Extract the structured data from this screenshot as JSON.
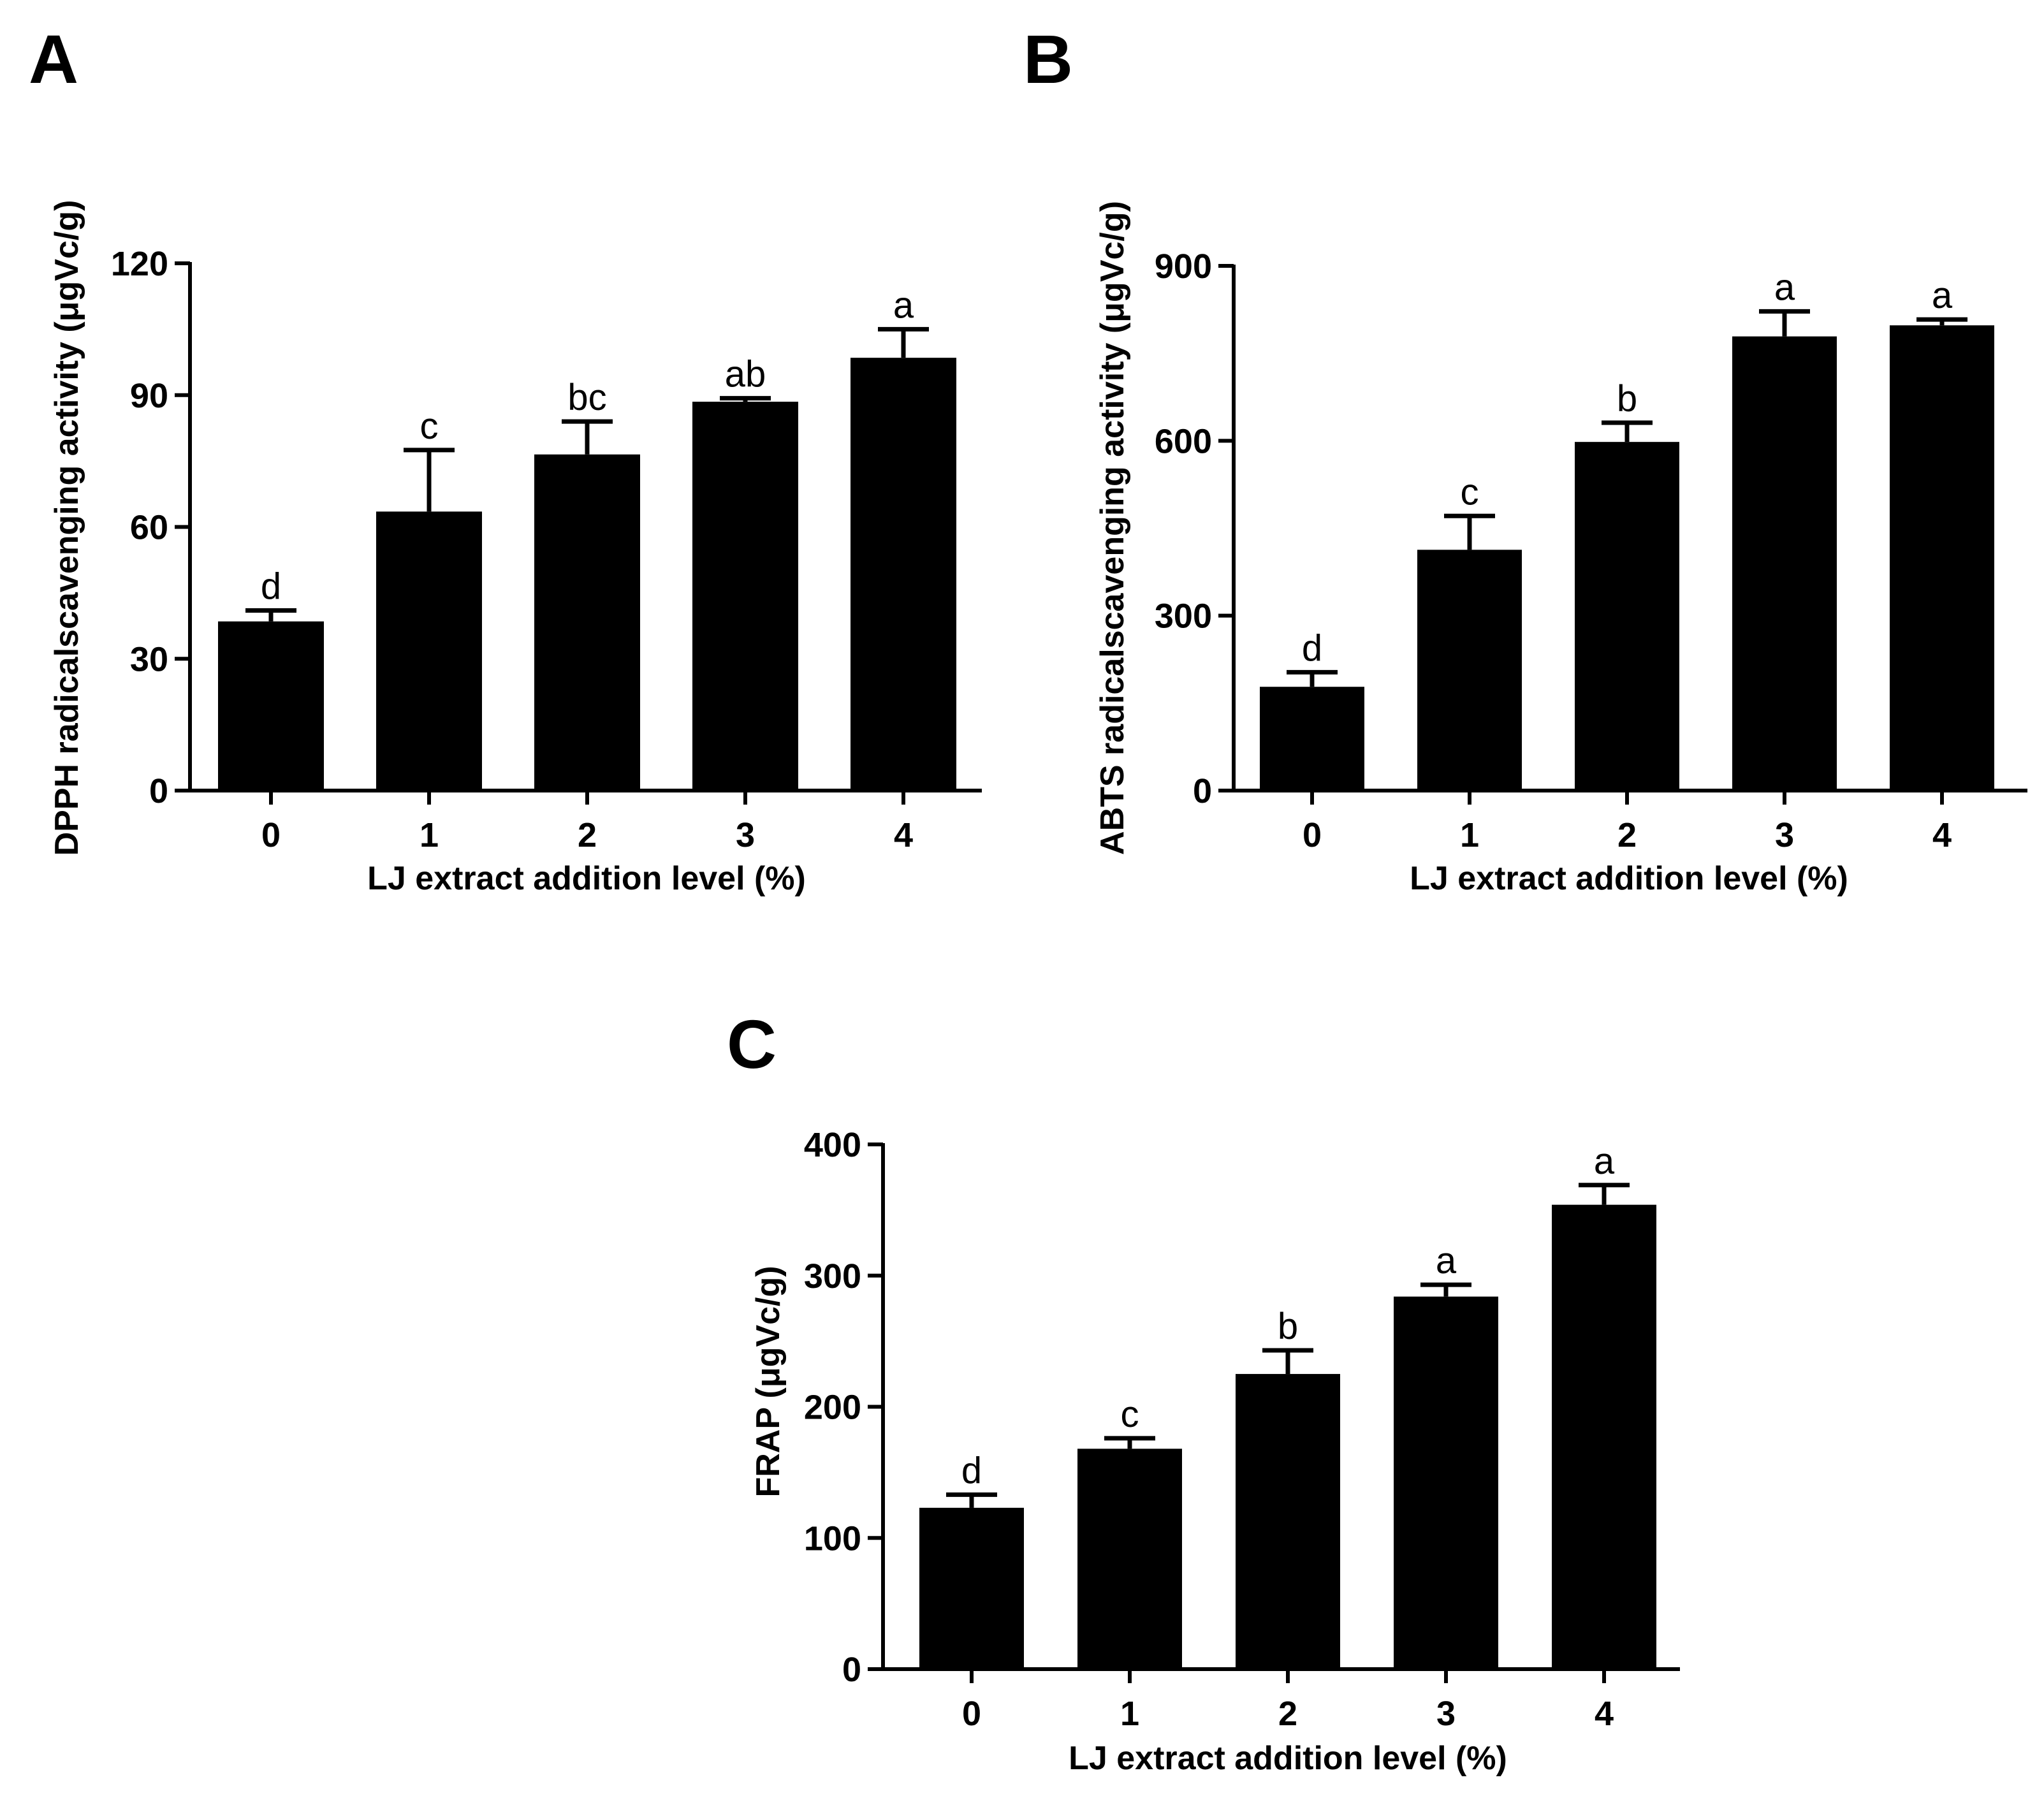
{
  "colors": {
    "bar": "#000000",
    "axis": "#000000",
    "background": "#ffffff"
  },
  "chart_data": [
    {
      "panel": "A",
      "type": "bar",
      "categories": [
        "0",
        "1",
        "2",
        "3",
        "4"
      ],
      "values": [
        38.5,
        63.5,
        76.5,
        88.5,
        98.5
      ],
      "errors": [
        2.5,
        14,
        7.5,
        0.8,
        6.5
      ],
      "significance": [
        "d",
        "c",
        "bc",
        "ab",
        "a"
      ],
      "xlabel": "LJ extract addition level (%)",
      "ylabel": "DPPH radicalscavenging activity (μgVc/g)",
      "ylim": [
        0,
        120
      ],
      "yticks": [
        0,
        30,
        60,
        90,
        120
      ],
      "grid": false,
      "legend": "none"
    },
    {
      "panel": "B",
      "type": "bar",
      "categories": [
        "0",
        "1",
        "2",
        "3",
        "4"
      ],
      "values": [
        178,
        413,
        598,
        779,
        798
      ],
      "errors": [
        25,
        58,
        33,
        43,
        10
      ],
      "significance": [
        "d",
        "c",
        "b",
        "a",
        "a"
      ],
      "xlabel": "LJ extract addition level (%)",
      "ylabel": "ABTS radicalscavenging activity (μgVc/g)",
      "ylim": [
        0,
        900
      ],
      "yticks": [
        0,
        300,
        600,
        900
      ],
      "grid": false,
      "legend": "none"
    },
    {
      "panel": "C",
      "type": "bar",
      "categories": [
        "0",
        "1",
        "2",
        "3",
        "4"
      ],
      "values": [
        123,
        168,
        225,
        284,
        354
      ],
      "errors": [
        10,
        8,
        18,
        9,
        15
      ],
      "significance": [
        "d",
        "c",
        "b",
        "a",
        "a"
      ],
      "xlabel": "LJ extract addition level (%)",
      "ylabel": "FRAP (μgVc/g)",
      "ylim": [
        0,
        400
      ],
      "yticks": [
        0,
        100,
        200,
        300,
        400
      ],
      "grid": false,
      "legend": "none"
    }
  ]
}
